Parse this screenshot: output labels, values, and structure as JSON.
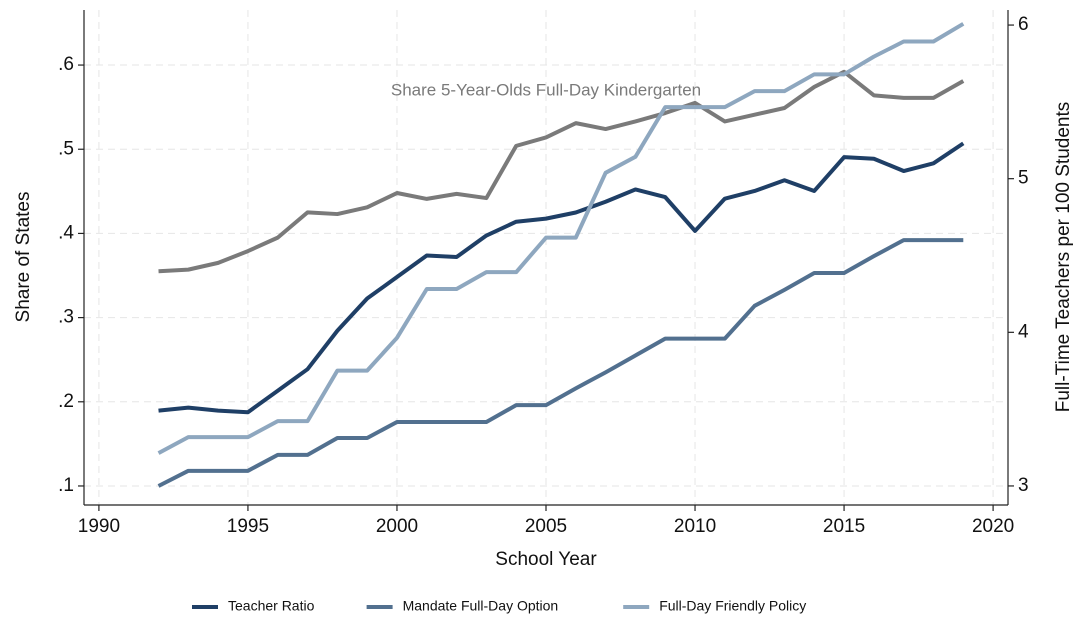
{
  "chart_data": {
    "type": "line",
    "xlabel": "School Year",
    "ylabel": "Share of States",
    "y2label": "Full-Time Teachers per 100 Students",
    "x": [
      1992,
      1993,
      1994,
      1995,
      1996,
      1997,
      1998,
      1999,
      2000,
      2001,
      2002,
      2003,
      2004,
      2005,
      2006,
      2007,
      2008,
      2009,
      2010,
      2011,
      2012,
      2013,
      2014,
      2015,
      2016,
      2017,
      2018,
      2019
    ],
    "series": [
      {
        "name": "Teacher Ratio",
        "color": "#1f3f66",
        "axis": "y2",
        "values": [
          3.49,
          3.51,
          3.49,
          3.48,
          3.62,
          3.76,
          4.01,
          4.22,
          4.36,
          4.5,
          4.49,
          4.63,
          4.72,
          4.74,
          4.78,
          4.85,
          4.93,
          4.88,
          4.66,
          4.87,
          4.92,
          4.99,
          4.92,
          5.14,
          5.13,
          5.05,
          5.1,
          5.23
        ]
      },
      {
        "name": "Mandate Full-Day Option",
        "color": "#52708f",
        "values": [
          0.1,
          0.118,
          0.118,
          0.118,
          0.137,
          0.137,
          0.157,
          0.157,
          0.176,
          0.176,
          0.176,
          0.176,
          0.196,
          0.196,
          0.216,
          0.235,
          0.255,
          0.275,
          0.275,
          0.275,
          0.314,
          0.333,
          0.353,
          0.353,
          0.373,
          0.392,
          0.392,
          0.392
        ]
      },
      {
        "name": "Full-Day Friendly Policy",
        "color": "#8ea7bf",
        "values": [
          0.139,
          0.158,
          0.158,
          0.158,
          0.177,
          0.177,
          0.237,
          0.237,
          0.276,
          0.334,
          0.334,
          0.354,
          0.354,
          0.395,
          0.395,
          0.472,
          0.491,
          0.55,
          0.55,
          0.55,
          0.569,
          0.569,
          0.589,
          0.589,
          0.61,
          0.628,
          0.628,
          0.649
        ]
      }
    ],
    "labeled_series": {
      "label": "Share 5-Year-Olds Full-Day Kindergarten",
      "color": "#7a7a7a",
      "values": [
        0.355,
        0.357,
        0.365,
        0.379,
        0.395,
        0.425,
        0.423,
        0.431,
        0.448,
        0.441,
        0.447,
        0.442,
        0.504,
        0.514,
        0.531,
        0.524,
        0.533,
        0.543,
        0.555,
        0.533,
        0.541,
        0.549,
        0.574,
        0.592,
        0.564,
        0.561,
        0.561,
        0.581
      ]
    },
    "xlim": [
      1989.5,
      2020.5
    ],
    "xticks": [
      1990,
      1995,
      2000,
      2005,
      2010,
      2015,
      2020
    ],
    "ylim": [
      0.0774,
      0.6654
    ],
    "yticks": [
      {
        "value": 0.1,
        "label": ".1"
      },
      {
        "value": 0.2,
        "label": ".2"
      },
      {
        "value": 0.3,
        "label": ".3"
      },
      {
        "value": 0.4,
        "label": ".4"
      },
      {
        "value": 0.5,
        "label": ".5"
      },
      {
        "value": 0.6,
        "label": ".6"
      }
    ],
    "y2lim": [
      2.876,
      6.098
    ],
    "y2ticks": [
      3,
      4,
      5,
      6
    ],
    "grid": true,
    "legend": "bottom"
  }
}
